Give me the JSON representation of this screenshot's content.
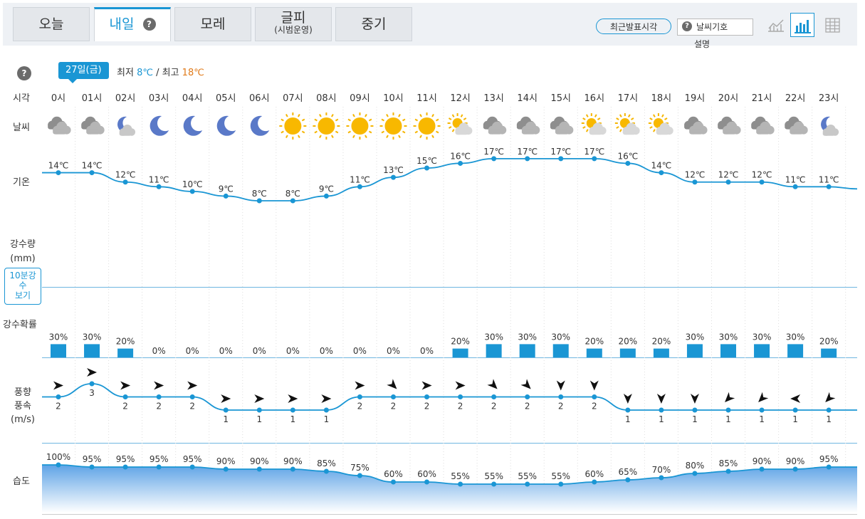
{
  "tabs": [
    {
      "label": "오늘",
      "sub": ""
    },
    {
      "label": "내일",
      "sub": ""
    },
    {
      "label": "모레",
      "sub": ""
    },
    {
      "label": "글피",
      "sub": "(시범운영)"
    },
    {
      "label": "중기",
      "sub": ""
    }
  ],
  "help_glyph": "?",
  "recent_button": "최근발표시각",
  "legend": {
    "label": "날씨기호",
    "sub": "설명"
  },
  "view_icons": [
    "line-chart-icon",
    "bar-chart-icon",
    "table-icon"
  ],
  "date_badge": "27일(금)",
  "minmax": {
    "min_label": "최저",
    "min_value": "8℃",
    "sep": "/",
    "max_label": "최고",
    "max_value": "18℃"
  },
  "row_labels": {
    "time": "시각",
    "weather": "날씨",
    "temp": "기온",
    "precip_amount": [
      "강수량",
      "(mm)"
    ],
    "precip_prob": "강수확률",
    "wind": [
      "풍향",
      "풍속",
      "(m/s)"
    ],
    "humidity": "습도"
  },
  "ten_min_button": [
    "10분강",
    "수",
    "보기"
  ],
  "colors": {
    "accent": "#1a96d4",
    "min": "#1a96d4",
    "max": "#e07a1a",
    "bar": "#1a96d4"
  },
  "hours": [
    "0시",
    "01시",
    "02시",
    "03시",
    "04시",
    "05시",
    "06시",
    "07시",
    "08시",
    "09시",
    "10시",
    "11시",
    "12시",
    "13시",
    "14시",
    "15시",
    "16시",
    "17시",
    "18시",
    "19시",
    "20시",
    "21시",
    "22시",
    "23시"
  ],
  "weather_icons": [
    "cloudy",
    "cloudy",
    "partly-cloudy-night",
    "moon",
    "moon",
    "moon",
    "moon",
    "sun",
    "sun",
    "sun",
    "sun",
    "sun",
    "partly-cloudy-day",
    "cloudy",
    "cloudy",
    "cloudy",
    "partly-cloudy-day",
    "partly-cloudy-day",
    "partly-cloudy-day",
    "cloudy",
    "cloudy",
    "cloudy",
    "cloudy",
    "partly-cloudy-night"
  ],
  "chart_data": {
    "type": "line",
    "x": [
      "0시",
      "01시",
      "02시",
      "03시",
      "04시",
      "05시",
      "06시",
      "07시",
      "08시",
      "09시",
      "10시",
      "11시",
      "12시",
      "13시",
      "14시",
      "15시",
      "16시",
      "17시",
      "18시",
      "19시",
      "20시",
      "21시",
      "22시",
      "23시"
    ],
    "temperature": [
      14,
      14,
      12,
      11,
      10,
      9,
      8,
      8,
      9,
      11,
      13,
      15,
      16,
      17,
      17,
      17,
      17,
      16,
      14,
      12,
      12,
      12,
      11,
      11
    ],
    "temp_unit": "℃",
    "precip_probability": [
      30,
      30,
      20,
      0,
      0,
      0,
      0,
      0,
      0,
      0,
      0,
      0,
      20,
      30,
      30,
      30,
      20,
      20,
      20,
      30,
      30,
      30,
      30,
      20
    ],
    "wind_speed": [
      2,
      3,
      2,
      2,
      2,
      1,
      1,
      1,
      1,
      2,
      2,
      2,
      2,
      2,
      2,
      2,
      2,
      1,
      1,
      1,
      1,
      1,
      1,
      1
    ],
    "wind_direction_deg": [
      90,
      90,
      90,
      90,
      90,
      90,
      90,
      90,
      90,
      90,
      135,
      90,
      90,
      135,
      135,
      180,
      180,
      180,
      180,
      180,
      225,
      225,
      270,
      225
    ],
    "humidity": [
      100,
      95,
      95,
      95,
      95,
      90,
      90,
      90,
      85,
      75,
      60,
      60,
      55,
      55,
      55,
      55,
      60,
      65,
      70,
      80,
      85,
      90,
      90,
      95
    ]
  }
}
